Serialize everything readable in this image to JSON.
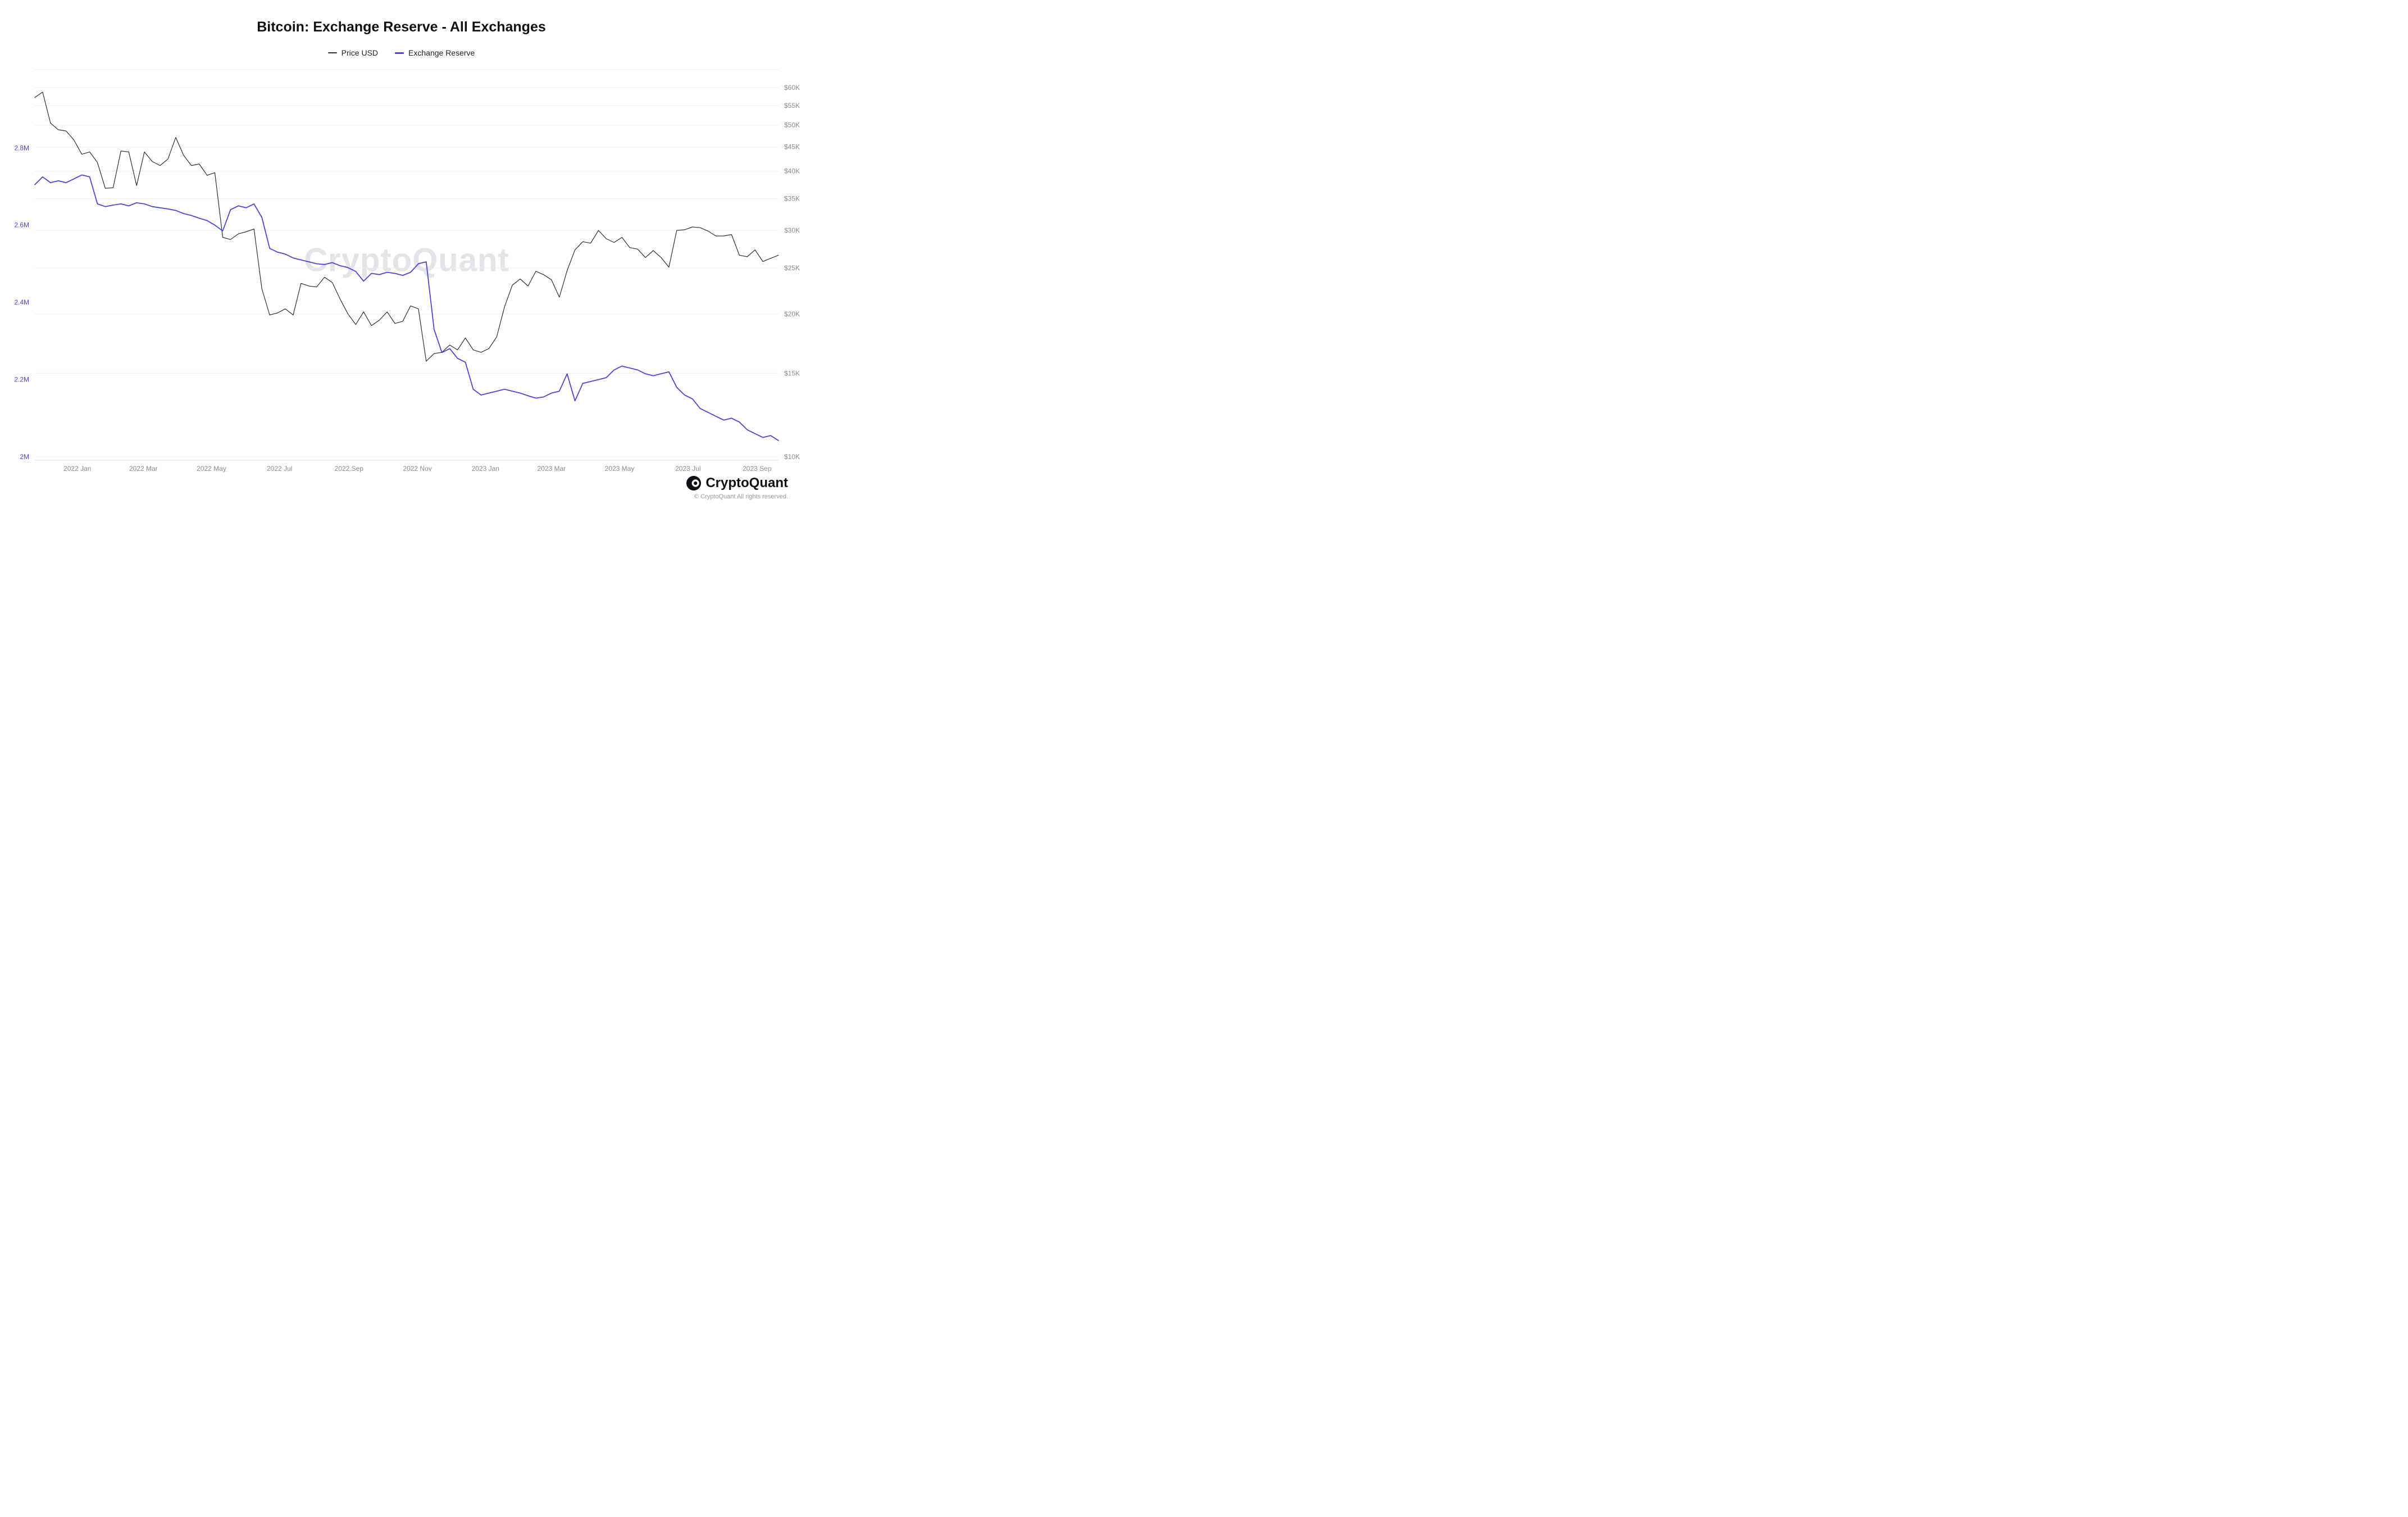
{
  "page": {
    "title": "Bitcoin: Exchange Reserve - All Exchanges"
  },
  "legend": [
    {
      "label": "Price USD",
      "color": "#2e2e2e"
    },
    {
      "label": "Exchange Reserve",
      "color": "#4b45d6"
    }
  ],
  "watermark": "CryptoQuant",
  "footer": {
    "brand": "CryptoQuant",
    "copyright": "© CryptoQuant All rights reserved."
  },
  "colors": {
    "price_line": "#2e2e2e",
    "reserve_line": "#4b45d6",
    "grid": "#ededed",
    "axis_line": "#e0e0e0",
    "right_axis_text": "#8c8c8c",
    "x_axis_text": "#8c8c8c",
    "left_axis_text": "#4b45d6"
  },
  "chart_data": {
    "type": "line",
    "title": "Bitcoin: Exchange Reserve - All Exchanges",
    "legend_position": "top",
    "grid": "horizontal",
    "sampling": "weekly points, uniform spacing, Nov 2021 through Sep 2023",
    "span_months": 21.85,
    "x_axis": {
      "tick_labels": [
        "2022 Jan",
        "2022 Mar",
        "2022 May",
        "2022 Jul",
        "2022 Sep",
        "2022 Nov",
        "2023 Jan",
        "2023 Mar",
        "2023 May",
        "2023 Jul",
        "2023 Sep"
      ],
      "tick_positions_months": [
        1.25,
        3.19,
        5.19,
        7.19,
        9.23,
        11.24,
        13.24,
        15.18,
        17.18,
        19.19,
        21.22
      ]
    },
    "left_axis": {
      "title": "Exchange Reserve (BTC)",
      "scale": "linear",
      "min": 2.0,
      "max": 2.8,
      "tick_values": [
        2.0,
        2.2,
        2.4,
        2.6,
        2.8
      ],
      "tick_labels": [
        "2M",
        "2.2M",
        "2.4M",
        "2.6M",
        "2.8M"
      ]
    },
    "right_axis": {
      "title": "Price USD",
      "scale": "log",
      "min": 10,
      "max": 60,
      "tick_values": [
        10,
        15,
        20,
        25,
        30,
        35,
        40,
        45,
        50,
        55,
        60
      ],
      "tick_labels": [
        "$10K",
        "$15K",
        "$20K",
        "$25K",
        "$30K",
        "$35K",
        "$40K",
        "$45K",
        "$50K",
        "$55K",
        "$60K"
      ]
    },
    "series": [
      {
        "name": "Price USD",
        "axis": "right",
        "unit": "USD thousands",
        "color": "#2e2e2e",
        "values": [
          57.2,
          58.7,
          50.5,
          48.9,
          48.6,
          46.5,
          43.4,
          43.9,
          41.7,
          36.8,
          36.9,
          44.1,
          43.9,
          37.3,
          43.9,
          41.9,
          41.1,
          42.4,
          47.1,
          43.2,
          41.1,
          41.4,
          39.2,
          39.7,
          29.0,
          28.7,
          29.5,
          29.8,
          30.2,
          22.6,
          19.9,
          20.1,
          20.5,
          19.9,
          23.2,
          22.9,
          22.8,
          23.9,
          23.3,
          21.5,
          20.0,
          19.0,
          20.2,
          18.9,
          19.4,
          20.2,
          19.1,
          19.3,
          20.8,
          20.5,
          15.9,
          16.5,
          16.6,
          17.2,
          16.8,
          17.8,
          16.8,
          16.6,
          16.9,
          17.9,
          20.7,
          23.0,
          23.7,
          22.9,
          24.6,
          24.2,
          23.6,
          21.7,
          24.7,
          27.3,
          28.4,
          28.2,
          30.0,
          28.8,
          28.3,
          29.0,
          27.6,
          27.4,
          26.3,
          27.2,
          26.3,
          25.1,
          30.0,
          30.1,
          30.5,
          30.4,
          29.9,
          29.2,
          29.2,
          29.4,
          26.6,
          26.4,
          27.3,
          25.8,
          26.2,
          26.6
        ]
      },
      {
        "name": "Exchange Reserve",
        "axis": "left",
        "unit": "BTC millions",
        "color": "#4b45d6",
        "values": [
          2.705,
          2.725,
          2.71,
          2.715,
          2.71,
          2.72,
          2.73,
          2.725,
          2.655,
          2.648,
          2.652,
          2.655,
          2.65,
          2.658,
          2.655,
          2.648,
          2.645,
          2.642,
          2.638,
          2.63,
          2.625,
          2.618,
          2.612,
          2.6,
          2.585,
          2.64,
          2.65,
          2.645,
          2.655,
          2.62,
          2.54,
          2.53,
          2.525,
          2.515,
          2.51,
          2.505,
          2.5,
          2.498,
          2.503,
          2.495,
          2.49,
          2.48,
          2.455,
          2.475,
          2.472,
          2.478,
          2.475,
          2.47,
          2.478,
          2.5,
          2.505,
          2.33,
          2.27,
          2.28,
          2.255,
          2.245,
          2.175,
          2.16,
          2.165,
          2.17,
          2.175,
          2.17,
          2.165,
          2.158,
          2.152,
          2.155,
          2.165,
          2.17,
          2.215,
          2.145,
          2.19,
          2.195,
          2.2,
          2.205,
          2.225,
          2.235,
          2.23,
          2.225,
          2.215,
          2.21,
          2.215,
          2.22,
          2.18,
          2.16,
          2.15,
          2.125,
          2.115,
          2.105,
          2.095,
          2.1,
          2.09,
          2.07,
          2.06,
          2.05,
          2.055,
          2.042
        ]
      }
    ]
  }
}
